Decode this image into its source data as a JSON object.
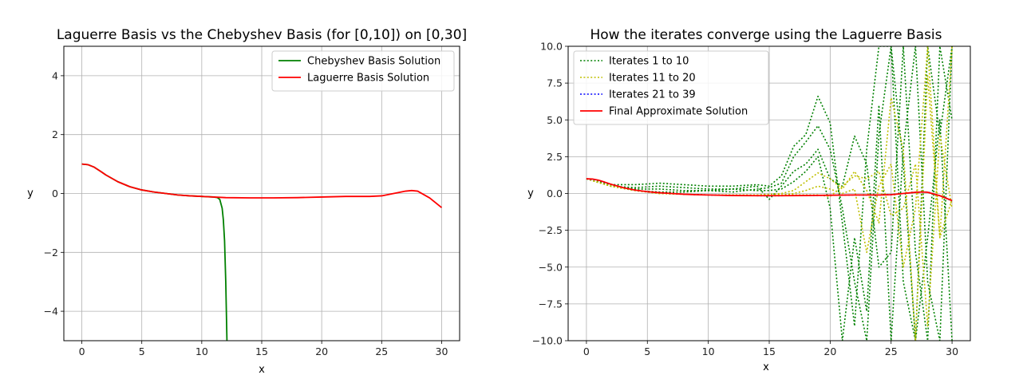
{
  "chart_data": [
    {
      "type": "line",
      "title": "Laguerre Basis vs the Chebyshev Basis (for [0,10]) on [0,30]",
      "xlabel": "x",
      "ylabel": "y",
      "xlim": [
        -1.5,
        31.5
      ],
      "ylim": [
        -5,
        5
      ],
      "xticks": [
        0,
        5,
        10,
        15,
        20,
        25,
        30
      ],
      "xtick_labels": [
        "0",
        "5",
        "10",
        "15",
        "20",
        "25",
        "30"
      ],
      "yticks": [
        -4,
        -2,
        0,
        2,
        4
      ],
      "ytick_labels": [
        "−4",
        "−2",
        "0",
        "2",
        "4"
      ],
      "grid": true,
      "legend_position": "top-right",
      "series": [
        {
          "name": "Chebyshev Basis Solution",
          "color": "#008000",
          "style": "solid",
          "x": [
            0,
            0.5,
            1,
            1.5,
            2,
            3,
            4,
            5,
            6,
            7,
            8,
            9,
            10,
            10.5,
            11,
            11.3,
            11.5,
            11.7,
            11.8,
            11.9,
            12.0,
            12.1
          ],
          "y": [
            1.0,
            0.98,
            0.9,
            0.77,
            0.63,
            0.4,
            0.23,
            0.12,
            0.05,
            0.0,
            -0.05,
            -0.08,
            -0.1,
            -0.11,
            -0.12,
            -0.14,
            -0.2,
            -0.5,
            -0.9,
            -1.6,
            -3.0,
            -5.0
          ]
        },
        {
          "name": "Laguerre Basis Solution",
          "color": "#ff0000",
          "style": "solid",
          "x": [
            0,
            0.5,
            1,
            1.5,
            2,
            3,
            4,
            5,
            6,
            7,
            8,
            9,
            10,
            12,
            14,
            16,
            18,
            20,
            22,
            23,
            24,
            25,
            26,
            27,
            27.5,
            28,
            29,
            30
          ],
          "y": [
            1.0,
            0.98,
            0.9,
            0.77,
            0.63,
            0.4,
            0.23,
            0.12,
            0.05,
            0.0,
            -0.05,
            -0.08,
            -0.1,
            -0.14,
            -0.15,
            -0.15,
            -0.14,
            -0.12,
            -0.1,
            -0.1,
            -0.1,
            -0.08,
            0.0,
            0.08,
            0.1,
            0.08,
            -0.15,
            -0.48
          ]
        }
      ]
    },
    {
      "type": "line",
      "title": "How the iterates converge using the Laguerre Basis",
      "xlabel": "x",
      "ylabel": "y",
      "xlim": [
        -1.5,
        31.5
      ],
      "ylim": [
        -10,
        10
      ],
      "xticks": [
        0,
        5,
        10,
        15,
        20,
        25,
        30
      ],
      "xtick_labels": [
        "0",
        "5",
        "10",
        "15",
        "20",
        "25",
        "30"
      ],
      "yticks": [
        -10,
        -7.5,
        -5,
        -2.5,
        0,
        2.5,
        5,
        7.5,
        10
      ],
      "ytick_labels": [
        "−10.0",
        "−7.5",
        "−5.0",
        "−2.5",
        "0.0",
        "2.5",
        "5.0",
        "7.5",
        "10.0"
      ],
      "grid": true,
      "legend_position": "top-left",
      "series": [
        {
          "name": "Iterates 1 to 10",
          "color": "#008000",
          "style": "dotted",
          "curves": [
            {
              "x": [
                0,
                2,
                4,
                6,
                8,
                10,
                12,
                14,
                15,
                16,
                17,
                18,
                19,
                20,
                21,
                22,
                23,
                24,
                25,
                26,
                27,
                28,
                29,
                30
              ],
              "y": [
                1.0,
                0.6,
                0.6,
                0.7,
                0.6,
                0.5,
                0.5,
                0.6,
                0.5,
                1.2,
                3.2,
                4.0,
                6.6,
                4.8,
                -2.0,
                -9.0,
                3.0,
                10.0,
                10.0,
                -6.0,
                -10.0,
                10.0,
                4.0,
                10.0
              ]
            },
            {
              "x": [
                0,
                2,
                4,
                6,
                8,
                10,
                12,
                14,
                15,
                16,
                17,
                18,
                19,
                20,
                21,
                22,
                23,
                24,
                25,
                26,
                27,
                28,
                29,
                30
              ],
              "y": [
                1.0,
                0.5,
                0.3,
                0.3,
                0.2,
                0.2,
                0.1,
                0.3,
                0.4,
                0.7,
                2.5,
                3.5,
                4.6,
                3.0,
                -1.0,
                -6.0,
                -10.0,
                4.0,
                10.0,
                2.0,
                -10.0,
                -3.0,
                5.0,
                -10.0
              ]
            },
            {
              "x": [
                0,
                2,
                4,
                6,
                8,
                10,
                12,
                14,
                15,
                16,
                17,
                18,
                19,
                20,
                21,
                22,
                23,
                24,
                25,
                26,
                27,
                28,
                29,
                30
              ],
              "y": [
                1.0,
                0.5,
                0.4,
                0.5,
                0.4,
                0.3,
                0.3,
                0.5,
                -0.4,
                0.5,
                1.5,
                2.0,
                3.0,
                1.0,
                0.5,
                3.9,
                2.0,
                -5.0,
                -4.0,
                10.0,
                -4.0,
                -10.0,
                10.0,
                5.0
              ]
            },
            {
              "x": [
                0,
                2,
                4,
                6,
                8,
                10,
                12,
                14,
                15,
                16,
                17,
                18,
                19,
                20,
                21,
                22,
                23,
                24,
                25,
                26,
                27,
                28,
                29,
                30
              ],
              "y": [
                1.0,
                0.5,
                0.2,
                0.1,
                0.1,
                0.2,
                0.3,
                0.2,
                0.2,
                0.3,
                0.8,
                1.5,
                2.5,
                -1.0,
                -10.0,
                -3.0,
                -8.0,
                6.0,
                -10.0,
                3.0,
                10.0,
                -6.0,
                -10.0,
                10.0
              ]
            }
          ]
        },
        {
          "name": "Iterates 11 to 20",
          "color": "#bfbf00",
          "style": "dotted",
          "curves": [
            {
              "x": [
                0,
                2,
                4,
                6,
                8,
                10,
                12,
                14,
                16,
                17,
                18,
                19,
                20,
                21,
                22,
                23,
                24,
                25,
                26,
                27,
                28,
                29,
                30
              ],
              "y": [
                1.0,
                0.5,
                0.2,
                0.0,
                -0.05,
                -0.1,
                -0.1,
                -0.1,
                0.0,
                0.2,
                0.8,
                1.4,
                1.0,
                0.3,
                1.5,
                0.2,
                -2.0,
                6.5,
                3.0,
                -10.0,
                8.0,
                -3.0,
                -0.4
              ]
            },
            {
              "x": [
                0,
                2,
                4,
                6,
                8,
                10,
                12,
                14,
                16,
                17,
                18,
                19,
                20,
                21,
                22,
                23,
                24,
                25,
                26,
                27,
                28,
                29,
                30
              ],
              "y": [
                1.0,
                0.5,
                0.2,
                0.0,
                -0.05,
                -0.1,
                -0.1,
                -0.1,
                -0.1,
                0.0,
                0.2,
                0.5,
                0.3,
                0.0,
                0.3,
                -4.0,
                0.5,
                2.0,
                -5.0,
                -1.0,
                10.0,
                -3.0,
                10.0
              ]
            },
            {
              "x": [
                0,
                2,
                4,
                6,
                8,
                10,
                12,
                14,
                16,
                17,
                18,
                19,
                20,
                21,
                22,
                23,
                24,
                25,
                26,
                27,
                28,
                29,
                30
              ],
              "y": [
                1.0,
                0.5,
                0.2,
                0.0,
                -0.05,
                -0.1,
                -0.1,
                -0.1,
                -0.1,
                -0.1,
                -0.1,
                -0.1,
                -0.2,
                0.5,
                1.2,
                1.0,
                1.5,
                -1.5,
                -1.0,
                2.0,
                -9.0,
                4.0,
                -1.0
              ]
            }
          ]
        },
        {
          "name": "Iterates 21 to 39",
          "color": "#0000ff",
          "style": "dotted",
          "curves": [
            {
              "x": [
                0,
                1,
                2,
                3,
                4,
                5,
                6,
                7,
                8,
                9,
                10,
                12,
                14,
                16,
                18,
                20,
                22,
                24,
                25,
                26,
                27,
                28,
                29,
                30
              ],
              "y": [
                1.0,
                0.9,
                0.63,
                0.4,
                0.23,
                0.12,
                0.05,
                0.0,
                -0.05,
                -0.08,
                -0.1,
                -0.14,
                -0.15,
                -0.15,
                -0.14,
                -0.12,
                -0.1,
                -0.1,
                -0.08,
                0.0,
                0.08,
                0.1,
                -0.15,
                -0.5
              ]
            }
          ]
        },
        {
          "name": "Final Approximate Solution",
          "color": "#ff0000",
          "style": "solid",
          "curves": [
            {
              "x": [
                0,
                0.5,
                1,
                1.5,
                2,
                3,
                4,
                5,
                6,
                7,
                8,
                9,
                10,
                12,
                14,
                16,
                18,
                20,
                22,
                23,
                24,
                25,
                26,
                27,
                27.5,
                28,
                29,
                30
              ],
              "y": [
                1.0,
                0.98,
                0.9,
                0.77,
                0.63,
                0.4,
                0.23,
                0.12,
                0.05,
                0.0,
                -0.05,
                -0.08,
                -0.1,
                -0.14,
                -0.15,
                -0.15,
                -0.14,
                -0.12,
                -0.1,
                -0.1,
                -0.1,
                -0.08,
                0.0,
                0.08,
                0.1,
                0.08,
                -0.15,
                -0.48
              ]
            }
          ]
        }
      ]
    }
  ]
}
